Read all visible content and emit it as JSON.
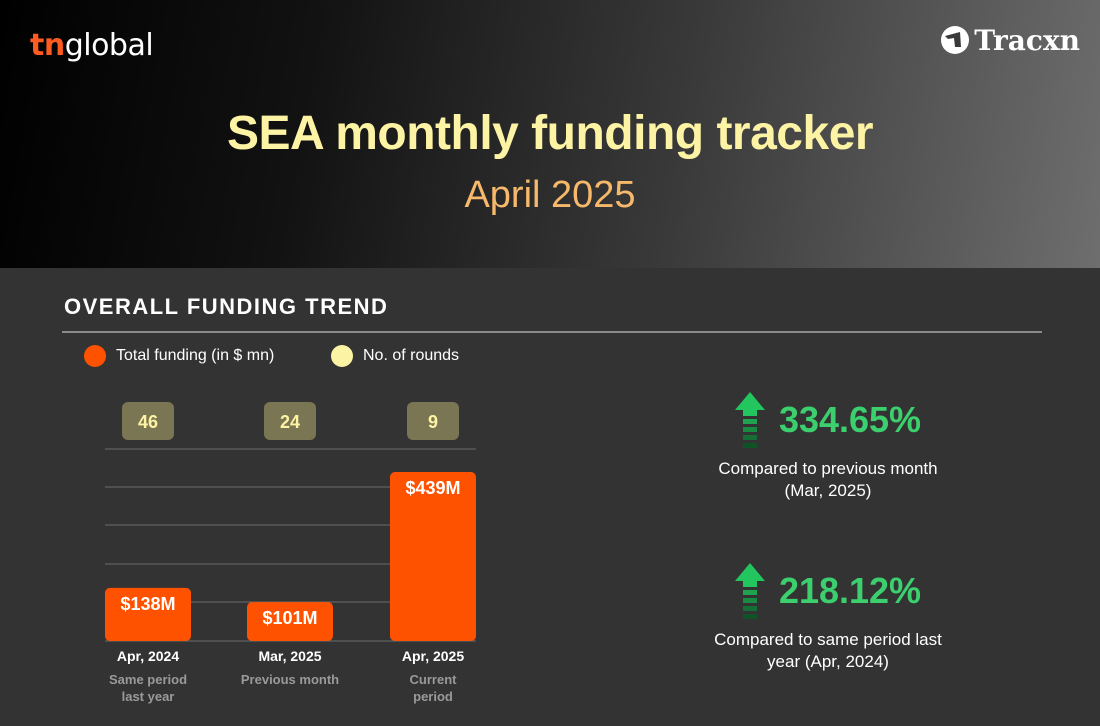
{
  "header": {
    "brand_left_prefix": "tn",
    "brand_left_suffix": "global",
    "brand_right": "Tracxn",
    "title": "SEA monthly funding tracker",
    "subtitle": "April 2025"
  },
  "section": {
    "title": "OVERALL FUNDING TREND"
  },
  "legend": [
    {
      "label": "Total funding (in $ mn)",
      "color": "#ff5200"
    },
    {
      "label": "No. of rounds",
      "color": "#fdf3a5"
    }
  ],
  "chart_data": {
    "type": "bar",
    "categories": [
      "Apr, 2024",
      "Mar, 2025",
      "Apr, 2025"
    ],
    "sublabels": [
      "Same period last year",
      "Previous month",
      "Current period"
    ],
    "series": [
      {
        "name": "Total funding (in $ mn)",
        "values": [
          138,
          101,
          439
        ],
        "labels": [
          "$138M",
          "$101M",
          "$439M"
        ],
        "color": "#ff5200"
      },
      {
        "name": "No. of rounds",
        "values": [
          46,
          24,
          9
        ],
        "color": "#fdf3a5"
      }
    ],
    "ylim": [
      0,
      439
    ],
    "grid": true
  },
  "stats": [
    {
      "value": "334.65%",
      "caption_line1": "Compared to previous month",
      "caption_line2": "(Mar, 2025)",
      "direction": "up",
      "color": "#3ccf6e"
    },
    {
      "value": "218.12%",
      "caption_line1": "Compared to same period last",
      "caption_line2": "year (Apr, 2024)",
      "direction": "up",
      "color": "#3ccf6e"
    }
  ]
}
